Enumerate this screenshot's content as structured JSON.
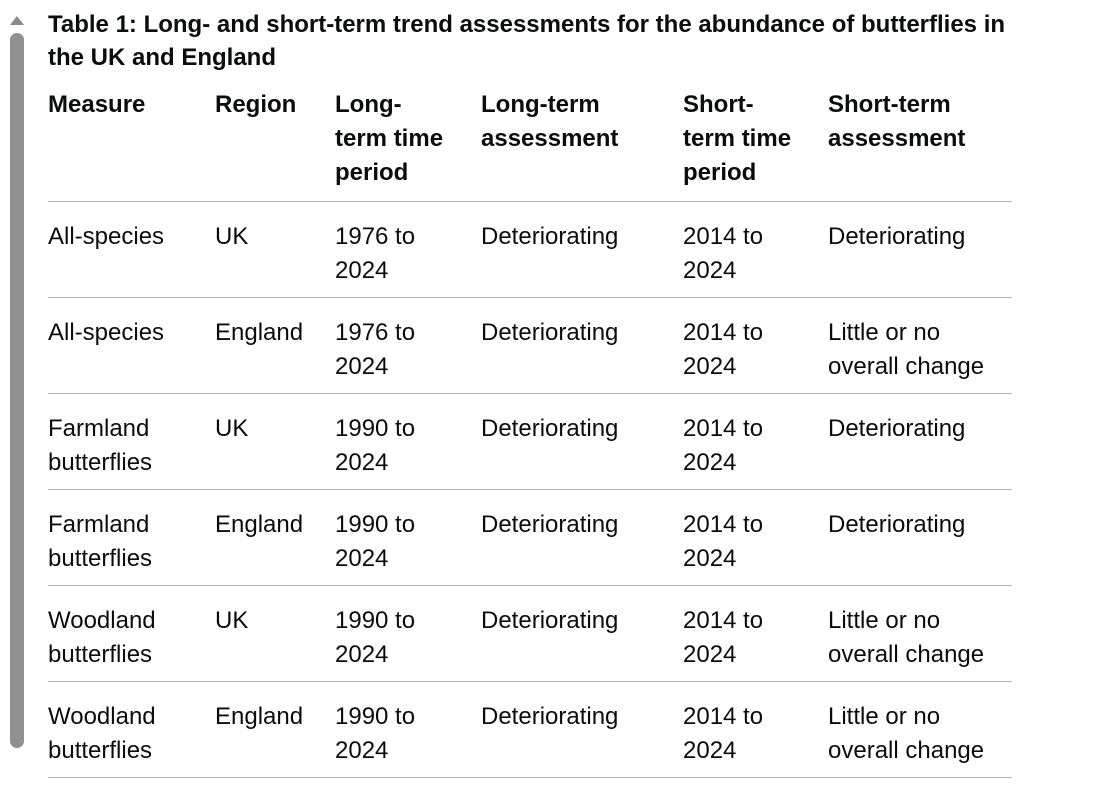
{
  "page": {
    "background_color": "#ffffff",
    "text_color": "#0b0c0c",
    "table_border_color": "#b1b4b6",
    "scrollbar_color": "#8f8f8f"
  },
  "scrollbar": {
    "up_arrow_icon": "triangle-up"
  },
  "table": {
    "caption": "Table 1: Long- and short-term trend assessments for the abundance of butterflies in\nthe UK and England",
    "columns": [
      {
        "label": "Measure"
      },
      {
        "label": "Region"
      },
      {
        "label": "Long-\nterm time\nperiod"
      },
      {
        "label": "Long-term\nassessment"
      },
      {
        "label": "Short-\nterm time\nperiod"
      },
      {
        "label": "Short-term\nassessment"
      }
    ],
    "rows": [
      [
        "All-species",
        "UK",
        "1976 to\n2024",
        "Deteriorating",
        "2014 to\n2024",
        "Deteriorating"
      ],
      [
        "All-species",
        "England",
        "1976 to\n2024",
        "Deteriorating",
        "2014 to\n2024",
        "Little or no\noverall change"
      ],
      [
        "Farmland\nbutterflies",
        "UK",
        "1990 to\n2024",
        "Deteriorating",
        "2014 to\n2024",
        "Deteriorating"
      ],
      [
        "Farmland\nbutterflies",
        "England",
        "1990 to\n2024",
        "Deteriorating",
        "2014 to\n2024",
        "Deteriorating"
      ],
      [
        "Woodland\nbutterflies",
        "UK",
        "1990 to\n2024",
        "Deteriorating",
        "2014 to\n2024",
        "Little or no\noverall change"
      ],
      [
        "Woodland\nbutterflies",
        "England",
        "1990 to\n2024",
        "Deteriorating",
        "2014 to\n2024",
        "Little or no\noverall change"
      ]
    ]
  }
}
